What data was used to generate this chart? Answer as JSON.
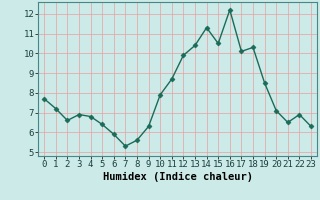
{
  "xlabel": "Humidex (Indice chaleur)",
  "x": [
    0,
    1,
    2,
    3,
    4,
    5,
    6,
    7,
    8,
    9,
    10,
    11,
    12,
    13,
    14,
    15,
    16,
    17,
    18,
    19,
    20,
    21,
    22,
    23
  ],
  "y": [
    7.7,
    7.2,
    6.6,
    6.9,
    6.8,
    6.4,
    5.9,
    5.3,
    5.6,
    6.3,
    7.9,
    8.7,
    9.9,
    10.4,
    11.3,
    10.5,
    12.2,
    10.1,
    10.3,
    8.5,
    7.1,
    6.5,
    6.9,
    6.3
  ],
  "line_color": "#1a6b5a",
  "marker": "D",
  "marker_size": 2.5,
  "bg_color": "#cceae7",
  "grid_color": "#e8a0a0",
  "ylim": [
    4.8,
    12.6
  ],
  "xlim": [
    -0.5,
    23.5
  ],
  "yticks": [
    5,
    6,
    7,
    8,
    9,
    10,
    11,
    12
  ],
  "xticks": [
    0,
    1,
    2,
    3,
    4,
    5,
    6,
    7,
    8,
    9,
    10,
    11,
    12,
    13,
    14,
    15,
    16,
    17,
    18,
    19,
    20,
    21,
    22,
    23
  ],
  "xlabel_fontsize": 7.5,
  "tick_fontsize": 6.5,
  "line_width": 1.0
}
